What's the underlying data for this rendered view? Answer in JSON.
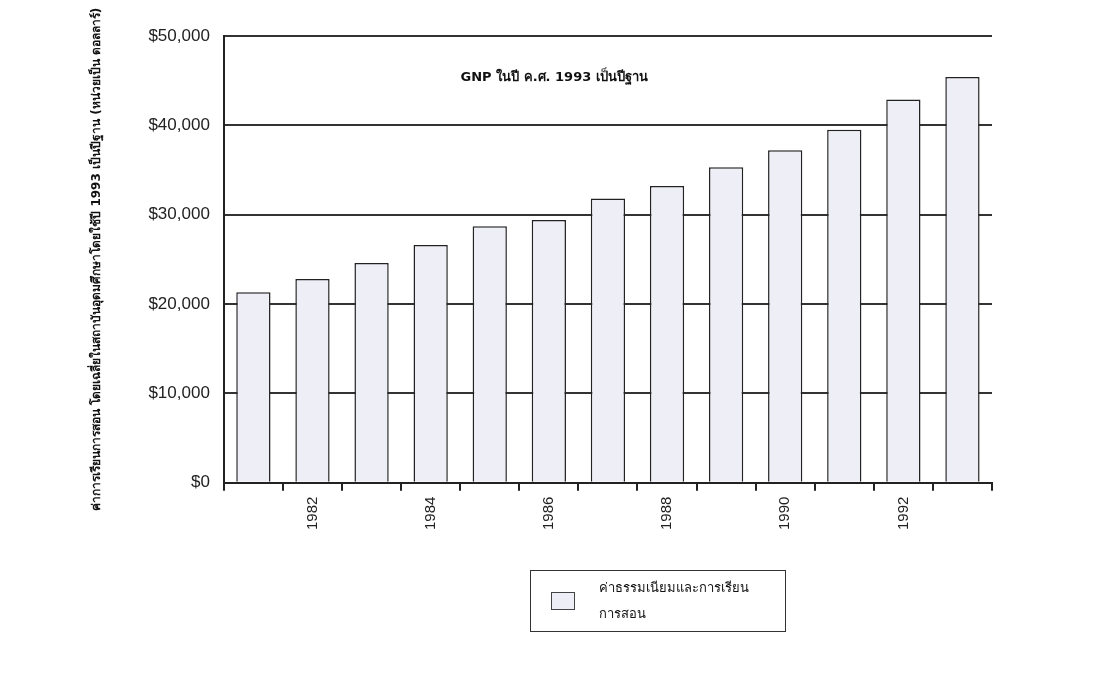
{
  "chart_data": {
    "type": "bar",
    "ylabel": "ค่าการเรียนการสอน โดยเฉลี่ยในสถาบันอุดมศึกษาโดยใช้ปี 1993 เป็นปีฐาน (หน่วยเป็น ดอลลาร์)",
    "categories": [
      null,
      "1982",
      null,
      "1984",
      null,
      "1986",
      null,
      "1988",
      null,
      "1990",
      null,
      "1992",
      null
    ],
    "series": [
      {
        "name": "ค่าธรรมเนียมและการเรียนการสอน",
        "color": "#eeeef6",
        "values": [
          21300,
          22800,
          24600,
          26600,
          28700,
          29400,
          31800,
          33200,
          35300,
          37200,
          39500,
          42900,
          45400
        ]
      }
    ],
    "ylim": [
      0,
      50000
    ],
    "yticks": [
      {
        "value": 0,
        "label": "$0"
      },
      {
        "value": 10000,
        "label": "$10,000"
      },
      {
        "value": 20000,
        "label": "$20,000"
      },
      {
        "value": 30000,
        "label": "$30,000"
      },
      {
        "value": 40000,
        "label": "$40,000"
      },
      {
        "value": 50000,
        "label": "$50,000"
      }
    ],
    "grid": "y",
    "legend": "bottom",
    "annotations": [
      "GNP ในปี ค.ศ. 1993 เป็นปีฐาน"
    ]
  }
}
